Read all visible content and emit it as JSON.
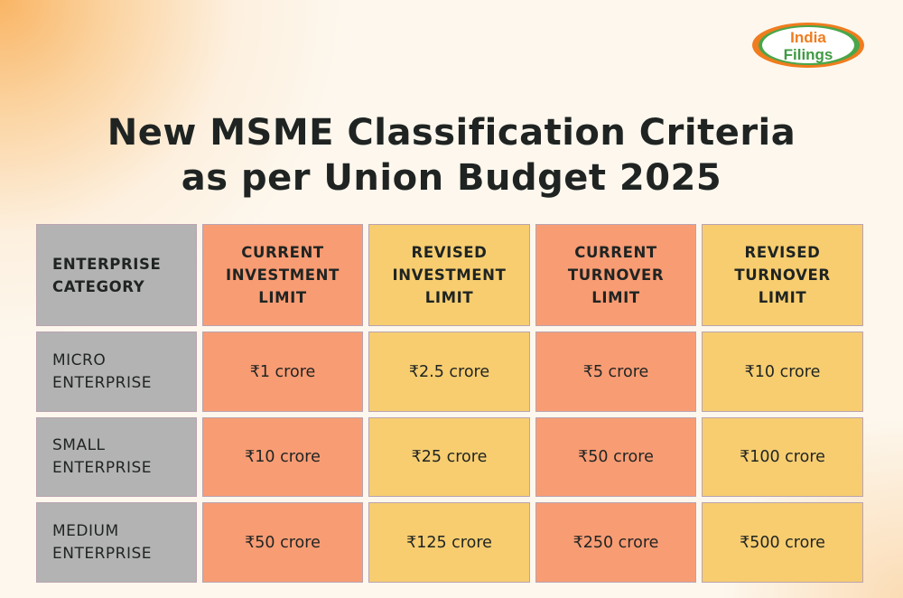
{
  "logo": {
    "line1": "India",
    "line2": "Filings"
  },
  "title": {
    "line1": "New MSME Classification Criteria",
    "line2": "as per Union Budget 2025"
  },
  "table": {
    "headers": [
      "ENTERPRISE CATEGORY",
      "CURRENT INVESTMENT LIMIT",
      "REVISED INVESTMENT LIMIT",
      "CURRENT TURNOVER LIMIT",
      "REVISED TURNOVER LIMIT"
    ],
    "rows": [
      [
        "MICRO ENTERPRISE",
        "₹1 crore",
        "₹2.5 crore",
        "₹5 crore",
        "₹10 crore"
      ],
      [
        "SMALL ENTERPRISE",
        "₹10 crore",
        "₹25 crore",
        "₹50 crore",
        "₹100 crore"
      ],
      [
        "MEDIUM ENTERPRISE",
        "₹50 crore",
        "₹125 crore",
        "₹250 crore",
        "₹500 crore"
      ]
    ]
  },
  "colors": {
    "category": "#b3b3b3",
    "current": "#f89c74",
    "revised": "#f7cd70",
    "background": "#fdf7ed"
  }
}
